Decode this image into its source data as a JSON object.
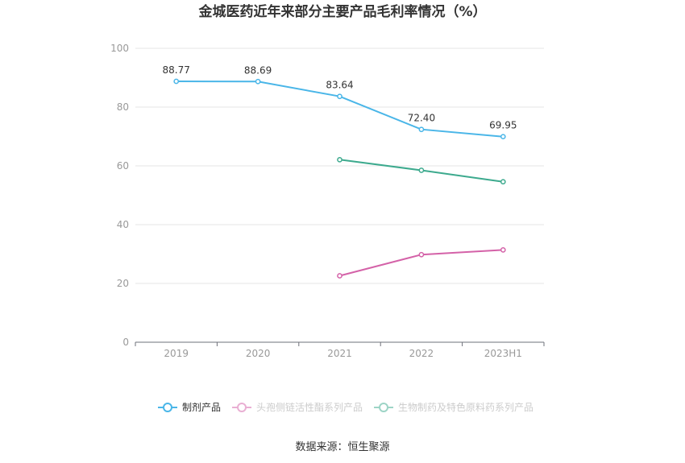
{
  "chart_data": {
    "type": "line",
    "title": "金城医药近年来部分主要产品毛利率情况（%）",
    "categories": [
      "2019",
      "2020",
      "2021",
      "2022",
      "2023H1"
    ],
    "ylim": [
      0,
      100
    ],
    "yticks": [
      0,
      20,
      40,
      60,
      80,
      100
    ],
    "grid": true,
    "series": [
      {
        "name": "制剂产品",
        "color": "#4ab6e8",
        "values": [
          88.77,
          88.69,
          83.64,
          72.4,
          69.95
        ],
        "labels": [
          "88.77",
          "88.69",
          "83.64",
          "72.40",
          "69.95"
        ],
        "legend_active": true
      },
      {
        "name": "头孢侧链活性酯系列产品",
        "color": "#d462a8",
        "values": [
          null,
          null,
          22.6,
          29.8,
          31.4
        ],
        "labels": null,
        "legend_active": false
      },
      {
        "name": "生物制药及特色原料药系列产品",
        "color": "#3daa8e",
        "values": [
          null,
          null,
          62.1,
          58.5,
          54.6
        ],
        "labels": null,
        "legend_active": false
      }
    ],
    "legend_position": "bottom",
    "source": "数据来源：恒生聚源"
  }
}
